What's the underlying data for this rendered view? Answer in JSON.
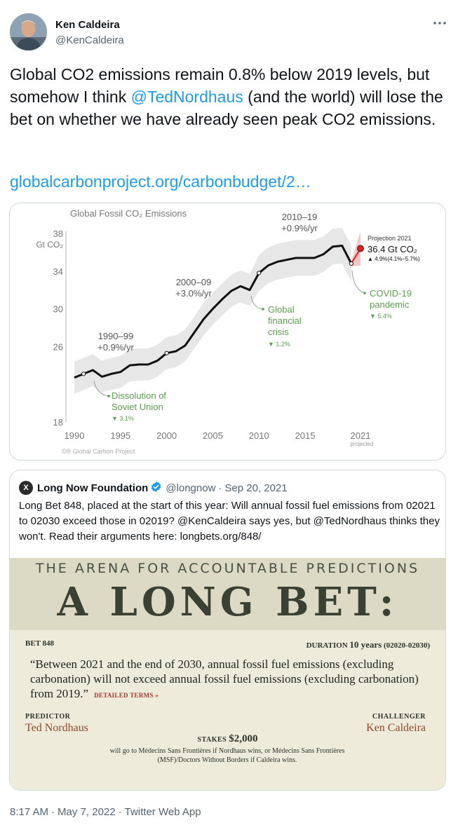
{
  "author": {
    "name": "Ken Caldeira",
    "handle": "@KenCaldeira"
  },
  "more_icon": "ellipsis-icon",
  "tweet": {
    "text_before": "Global CO2 emissions remain 0.8% below 2019 levels, but somehow I think ",
    "mention": "@TedNordhaus",
    "text_after": " (and the world) will lose the bet on whether we have already seen peak CO2 emissions.",
    "link": "globalcarbonproject.org/carbonbudget/2…"
  },
  "chart_data": {
    "type": "line",
    "title": "Global Fossil CO₂ Emissions",
    "ylabel_value": "38",
    "ylabel_unit": "Gt CO₂",
    "ylim": [
      18,
      38
    ],
    "yticks": [
      "18",
      "26",
      "30",
      "34"
    ],
    "xticks": [
      "1990",
      "1995",
      "2000",
      "2005",
      "2010",
      "2015",
      "2021"
    ],
    "x_projected_label": "projected",
    "x": [
      1990,
      1991,
      1992,
      1993,
      1994,
      1995,
      1996,
      1997,
      1998,
      1999,
      2000,
      2001,
      2002,
      2003,
      2004,
      2005,
      2006,
      2007,
      2008,
      2009,
      2010,
      2011,
      2012,
      2013,
      2014,
      2015,
      2016,
      2017,
      2018,
      2019,
      2020,
      2021
    ],
    "values": [
      22.7,
      23.1,
      23.5,
      22.8,
      23.1,
      23.3,
      24.0,
      24.1,
      24.1,
      24.5,
      25.3,
      25.5,
      26.1,
      27.5,
      28.9,
      30.0,
      31.0,
      31.9,
      32.4,
      32.0,
      33.8,
      34.6,
      35.0,
      35.2,
      35.4,
      35.4,
      35.4,
      35.8,
      36.6,
      36.7,
      34.8,
      36.4
    ],
    "annotations": {
      "period_1990": {
        "years": "1990–99",
        "rate": "+0.9%/yr"
      },
      "period_2000": {
        "years": "2000–09",
        "rate": "+3.0%/yr"
      },
      "period_2010": {
        "years": "2010–19",
        "rate": "+0.9%/yr"
      },
      "soviet": {
        "line1": "Dissolution of",
        "line2": "Soviet Union",
        "drop": "▼ 3.1%"
      },
      "crisis": {
        "line1": "Global",
        "line2": "financial",
        "line3": "crisis",
        "drop": "▼ 1.2%"
      },
      "covid": {
        "line1": "COVID-19",
        "line2": "pandemic",
        "drop": "▼ 5.4%"
      },
      "projection": {
        "title": "Projection 2021",
        "value": "36.4 Gt CO₂",
        "range": "▲ 4.9%(4.1%–5.7%)"
      }
    },
    "credit": "©® Global Carbon Project",
    "colors": {
      "line": "#111111",
      "band": "#e6e6e6",
      "annotation": "#5c9e4f",
      "projection": "#e02020",
      "axis_text": "#777777"
    }
  },
  "quote": {
    "logo": "X",
    "name": "Long Now Foundation",
    "verified_icon": "verified-badge-icon",
    "handle": "@longnow",
    "date": "Sep 20, 2021",
    "text": "Long Bet 848, placed at the start of this year: Will annual fossil fuel emissions from 02021 to 02030 exceed those in 02019? @KenCaldeira says yes, but @TedNordhaus thinks they won't. Read their arguments here: longbets.org/848/",
    "banner": {
      "arena": "THE ARENA FOR ACCOUNTABLE PREDICTIONS",
      "headline": "A LONG BET:",
      "bet_number": "BET 848",
      "duration_label": "DURATION",
      "duration_value": "10 years",
      "duration_range": "(02020-02030)",
      "quote": "“Between 2021 and the end of 2030, annual fossil fuel emissions (excluding carbonation) will not exceed annual fossil fuel emissions (excluding carbonation) from 2019.”",
      "detailed_terms": "DETAILED TERMS »",
      "predictor_label": "PREDICTOR",
      "predictor_name": "Ted Nordhaus",
      "challenger_label": "CHALLENGER",
      "challenger_name": "Ken Caldeira",
      "stakes_label": "STAKES",
      "stakes_amount": "$2,000",
      "stakes_text": "will go to Médecins Sans Frontières if Nordhaus wins, or Médecins Sans Frontières (MSF)/Doctors Without Borders if Caldeira wins."
    }
  },
  "footer": {
    "time": "8:17 AM",
    "date": "May 7, 2022",
    "source": "Twitter Web App"
  }
}
